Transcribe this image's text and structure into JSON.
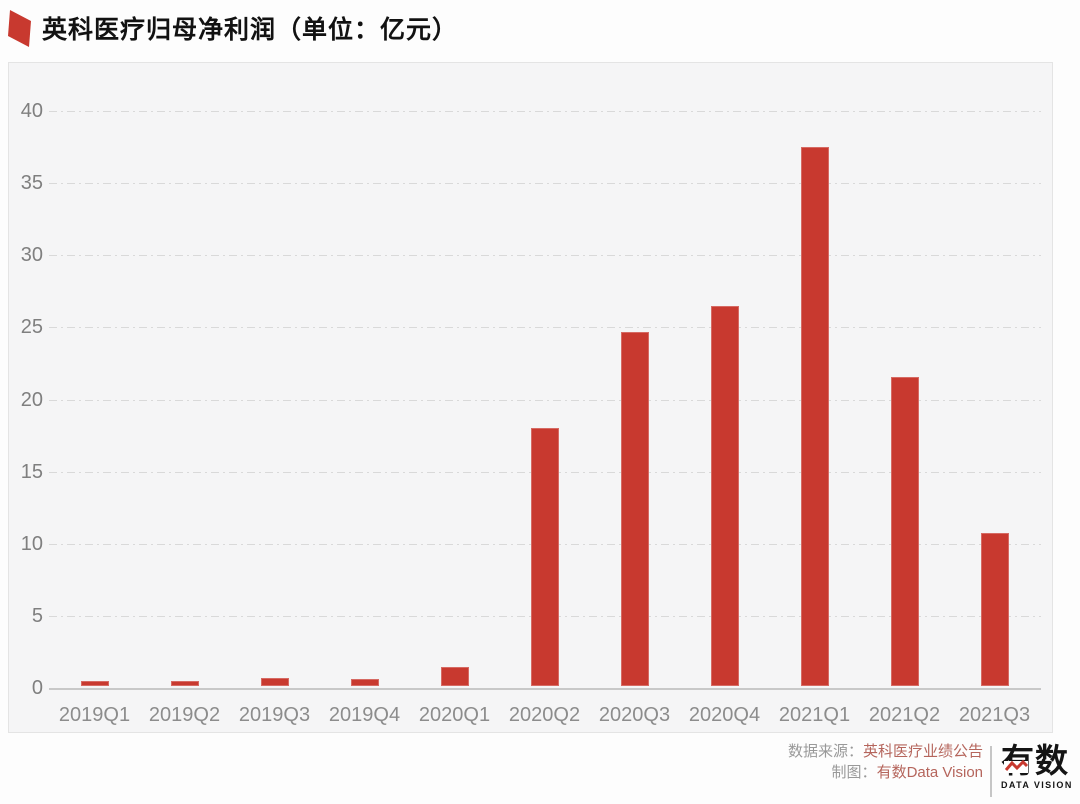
{
  "header": {
    "title": "英科医疗归母净利润（单位：亿元）",
    "accent_color": "#C8392F"
  },
  "chart_data": {
    "type": "bar",
    "title": "英科医疗归母净利润（单位：亿元）",
    "categories": [
      "2019Q1",
      "2019Q2",
      "2019Q3",
      "2019Q4",
      "2020Q1",
      "2020Q2",
      "2020Q3",
      "2020Q4",
      "2021Q1",
      "2021Q2",
      "2021Q3"
    ],
    "values": [
      0.35,
      0.36,
      0.57,
      0.5,
      1.33,
      17.9,
      24.55,
      26.31,
      37.36,
      21.4,
      10.63
    ],
    "xlabel": "",
    "ylabel": "",
    "ylim": [
      0,
      40
    ],
    "yticks": [
      0,
      5,
      10,
      15,
      20,
      25,
      30,
      35,
      40
    ],
    "bar_color": "#C8392F",
    "grid": "horizontal dash-dot gridlines, solid zero axis",
    "legend": "none",
    "plot_background": "#F5F5F6"
  },
  "footer": {
    "source_label": "数据来源：",
    "source_value": "英科医疗业绩公告",
    "credit_label": "制图：",
    "credit_value": "有数Data Vision",
    "logo_text": "有数",
    "logo_subtext": "DATA VISION",
    "text_accent_color": "#B5655C"
  }
}
